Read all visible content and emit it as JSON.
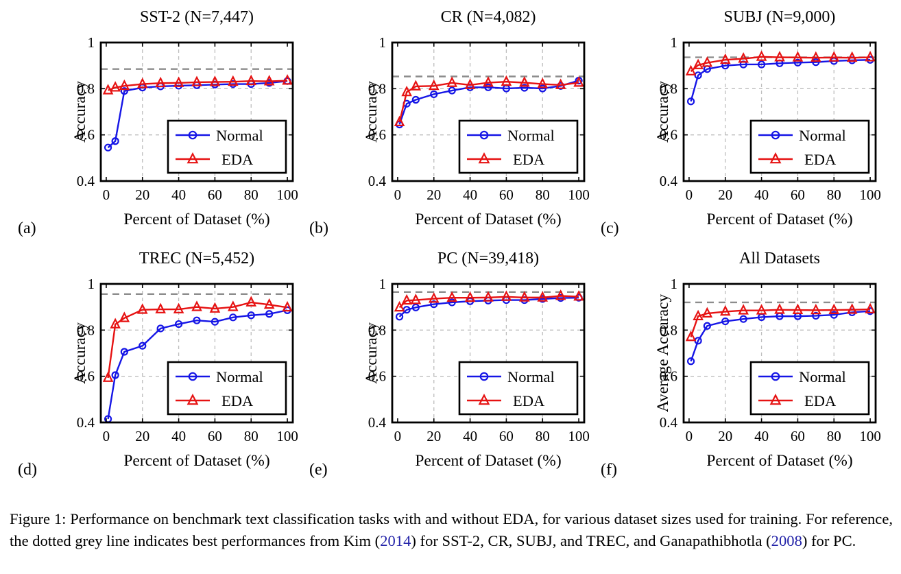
{
  "colors": {
    "normal": "#1515e6",
    "eda": "#e61212",
    "reference_line": "#8c8c8c",
    "grid": "#bdbdbd",
    "frame": "#000000",
    "citation": "#2222a8"
  },
  "axes": {
    "xlim": [
      -3,
      103
    ],
    "ylim": [
      0.4,
      1.0
    ],
    "xticks": [
      0,
      20,
      40,
      60,
      80,
      100
    ],
    "ytick_values": [
      0.4,
      0.6,
      0.8,
      1.0
    ],
    "ytick_labels": [
      "0.4",
      "0.6",
      "0.8",
      "1"
    ],
    "xgrid": [
      20,
      40,
      60,
      80
    ],
    "ygrid": [
      0.6,
      0.8
    ],
    "grid_style": "dashed",
    "legend_position": "lower right"
  },
  "chart_data": [
    {
      "type": "line",
      "panel_label": "(a)",
      "title": "SST-2 (N=7,447)",
      "xlabel": "Percent of Dataset (%)",
      "ylabel": "Accuracy",
      "reference_best": 0.885,
      "x": [
        1,
        5,
        10,
        20,
        30,
        40,
        50,
        60,
        70,
        80,
        90,
        100
      ],
      "series": [
        {
          "name": "Normal",
          "marker": "circle",
          "color_key": "normal",
          "values": [
            0.545,
            0.573,
            0.79,
            0.805,
            0.81,
            0.813,
            0.815,
            0.818,
            0.82,
            0.82,
            0.825,
            0.833
          ]
        },
        {
          "name": "EDA",
          "marker": "triangle",
          "color_key": "eda",
          "values": [
            0.793,
            0.805,
            0.812,
            0.82,
            0.824,
            0.825,
            0.828,
            0.829,
            0.83,
            0.833,
            0.832,
            0.835
          ]
        }
      ]
    },
    {
      "type": "line",
      "panel_label": "(b)",
      "title": "CR (N=4,082)",
      "xlabel": "Percent of Dataset (%)",
      "ylabel": "Accuracy",
      "reference_best": 0.853,
      "x": [
        1,
        5,
        10,
        20,
        30,
        40,
        50,
        60,
        70,
        80,
        90,
        100
      ],
      "series": [
        {
          "name": "Normal",
          "marker": "circle",
          "color_key": "normal",
          "values": [
            0.645,
            0.735,
            0.752,
            0.776,
            0.792,
            0.806,
            0.806,
            0.801,
            0.804,
            0.801,
            0.812,
            0.835
          ]
        },
        {
          "name": "EDA",
          "marker": "triangle",
          "color_key": "eda",
          "values": [
            0.655,
            0.785,
            0.81,
            0.812,
            0.825,
            0.816,
            0.826,
            0.83,
            0.826,
            0.82,
            0.816,
            0.826
          ]
        }
      ]
    },
    {
      "type": "line",
      "panel_label": "(c)",
      "title": "SUBJ (N=9,000)",
      "xlabel": "Percent of Dataset (%)",
      "ylabel": "Accuracy",
      "reference_best": 0.936,
      "x": [
        1,
        5,
        10,
        20,
        30,
        40,
        50,
        60,
        70,
        80,
        90,
        100
      ],
      "series": [
        {
          "name": "Normal",
          "marker": "circle",
          "color_key": "normal",
          "values": [
            0.745,
            0.858,
            0.885,
            0.9,
            0.905,
            0.905,
            0.91,
            0.913,
            0.915,
            0.92,
            0.923,
            0.925
          ]
        },
        {
          "name": "EDA",
          "marker": "triangle",
          "color_key": "eda",
          "values": [
            0.875,
            0.902,
            0.912,
            0.925,
            0.93,
            0.938,
            0.936,
            0.935,
            0.934,
            0.935,
            0.934,
            0.936
          ]
        }
      ]
    },
    {
      "type": "line",
      "panel_label": "(d)",
      "title": "TREC (N=5,452)",
      "xlabel": "Percent of Dataset (%)",
      "ylabel": "Accuracy",
      "reference_best": 0.956,
      "x": [
        1,
        5,
        10,
        20,
        30,
        40,
        50,
        60,
        70,
        80,
        90,
        100
      ],
      "series": [
        {
          "name": "Normal",
          "marker": "circle",
          "color_key": "normal",
          "values": [
            0.415,
            0.605,
            0.706,
            0.732,
            0.807,
            0.826,
            0.842,
            0.836,
            0.855,
            0.864,
            0.87,
            0.886
          ]
        },
        {
          "name": "EDA",
          "marker": "triangle",
          "color_key": "eda",
          "values": [
            0.593,
            0.825,
            0.852,
            0.888,
            0.89,
            0.89,
            0.9,
            0.893,
            0.9,
            0.92,
            0.91,
            0.898
          ]
        }
      ]
    },
    {
      "type": "line",
      "panel_label": "(e)",
      "title": "PC (N=39,418)",
      "xlabel": "Percent of Dataset (%)",
      "ylabel": "Accuracy",
      "reference_best": 0.965,
      "x": [
        1,
        5,
        10,
        20,
        30,
        40,
        50,
        60,
        70,
        80,
        90,
        100
      ],
      "series": [
        {
          "name": "Normal",
          "marker": "circle",
          "color_key": "normal",
          "values": [
            0.858,
            0.888,
            0.898,
            0.912,
            0.92,
            0.925,
            0.928,
            0.93,
            0.93,
            0.935,
            0.939,
            0.94
          ]
        },
        {
          "name": "EDA",
          "marker": "triangle",
          "color_key": "eda",
          "values": [
            0.898,
            0.928,
            0.93,
            0.936,
            0.94,
            0.94,
            0.941,
            0.944,
            0.941,
            0.941,
            0.948,
            0.945
          ]
        }
      ]
    },
    {
      "type": "line",
      "panel_label": "(f)",
      "title": "All Datasets",
      "xlabel": "Percent of Dataset (%)",
      "ylabel": "Average Accuracy",
      "reference_best": 0.92,
      "x": [
        1,
        5,
        10,
        20,
        30,
        40,
        50,
        60,
        70,
        80,
        90,
        100
      ],
      "series": [
        {
          "name": "Normal",
          "marker": "circle",
          "color_key": "normal",
          "values": [
            0.665,
            0.754,
            0.818,
            0.838,
            0.848,
            0.856,
            0.86,
            0.86,
            0.862,
            0.866,
            0.877,
            0.882
          ]
        },
        {
          "name": "EDA",
          "marker": "triangle",
          "color_key": "eda",
          "values": [
            0.77,
            0.86,
            0.872,
            0.88,
            0.885,
            0.885,
            0.888,
            0.887,
            0.886,
            0.887,
            0.888,
            0.89
          ]
        }
      ]
    }
  ],
  "caption": {
    "parts": [
      {
        "text": "Figure 1: Performance on benchmark text classification tasks with and without EDA, for various dataset sizes used for training. For reference, the dotted grey line indicates best performances from Kim ("
      },
      {
        "text": "2014",
        "cite": true
      },
      {
        "text": ") for SST-2, CR, SUBJ, and TREC, and Ganapathibhotla ("
      },
      {
        "text": "2008",
        "cite": true
      },
      {
        "text": ") for PC."
      }
    ]
  }
}
